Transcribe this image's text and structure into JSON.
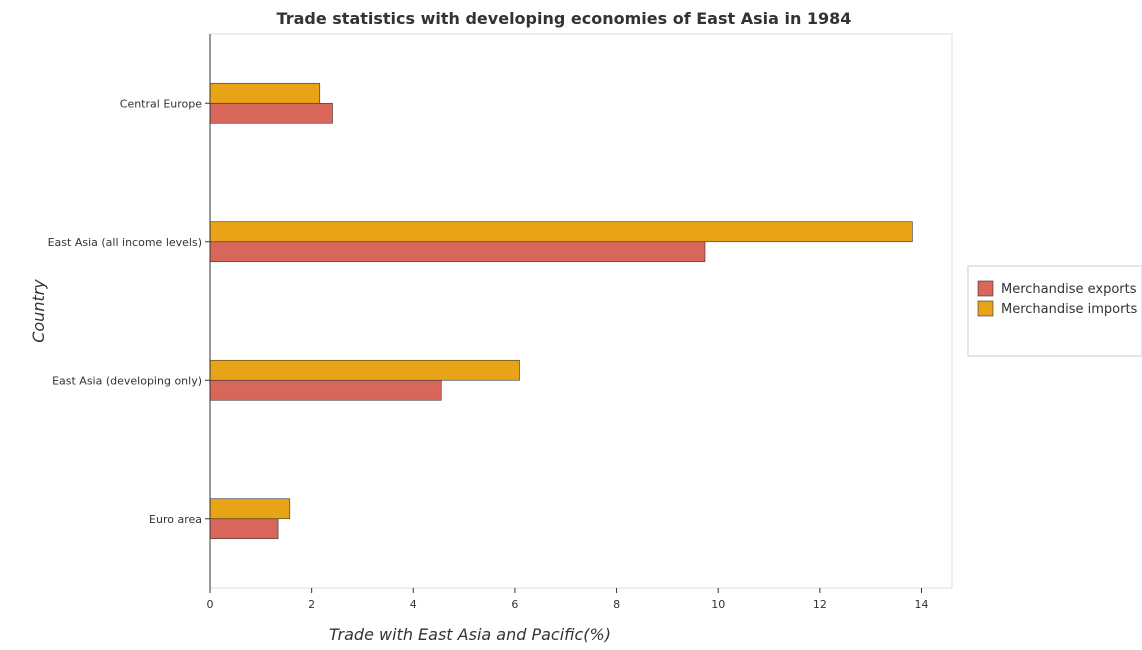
{
  "chart_data": {
    "type": "bar",
    "orientation": "horizontal",
    "title": "Trade statistics with developing economies of East Asia in 1984",
    "xlabel": "Trade with East Asia and Pacific(%)",
    "ylabel": "Country",
    "categories": [
      "Central Europe",
      "East Asia (all income levels)",
      "East Asia (developing only)",
      "Euro area"
    ],
    "series": [
      {
        "name": "Merchandise exports",
        "color": "#d9665a",
        "values": [
          2.41,
          9.74,
          4.55,
          1.34
        ]
      },
      {
        "name": "Merchandise imports",
        "color": "#e8a317",
        "values": [
          2.16,
          13.82,
          6.09,
          1.57
        ]
      }
    ],
    "xlim": [
      0,
      14.6
    ],
    "xticks": [
      0,
      2,
      4,
      6,
      8,
      10,
      12,
      14
    ],
    "grid": false,
    "legend_position": "right"
  }
}
